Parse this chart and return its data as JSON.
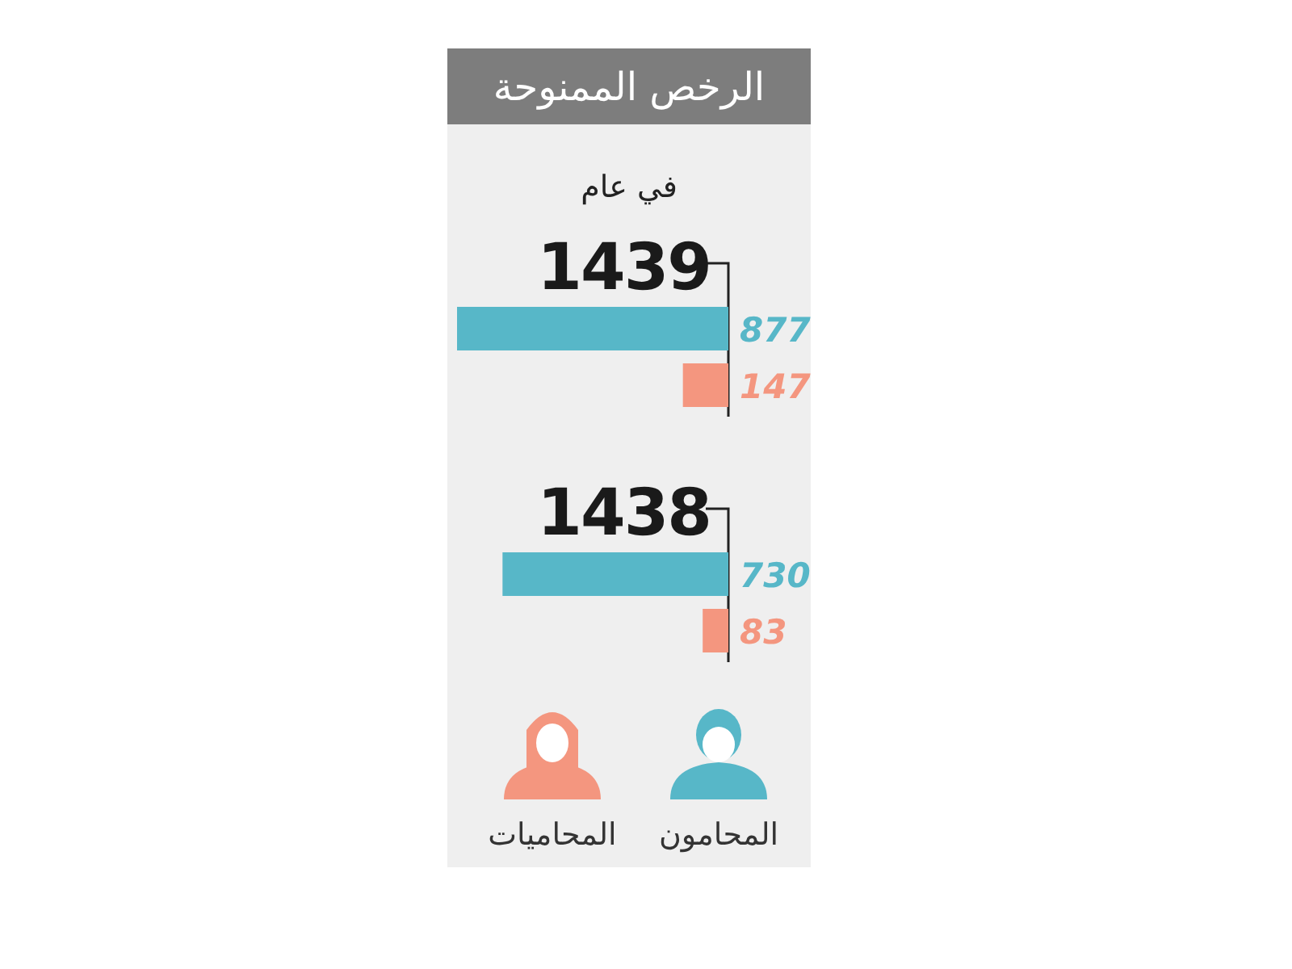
{
  "chart_data": {
    "type": "bar",
    "orientation": "horizontal",
    "title": "الرخص الممنوحة",
    "subtitle": "في عام",
    "categories": [
      "1439",
      "1438"
    ],
    "series": [
      {
        "name": "المحامون",
        "color": "#57b7c8",
        "values": [
          877,
          730
        ]
      },
      {
        "name": "المحاميات",
        "color": "#f4967f",
        "values": [
          147,
          83
        ]
      }
    ],
    "data_labels": true,
    "legend": "bottom"
  }
}
